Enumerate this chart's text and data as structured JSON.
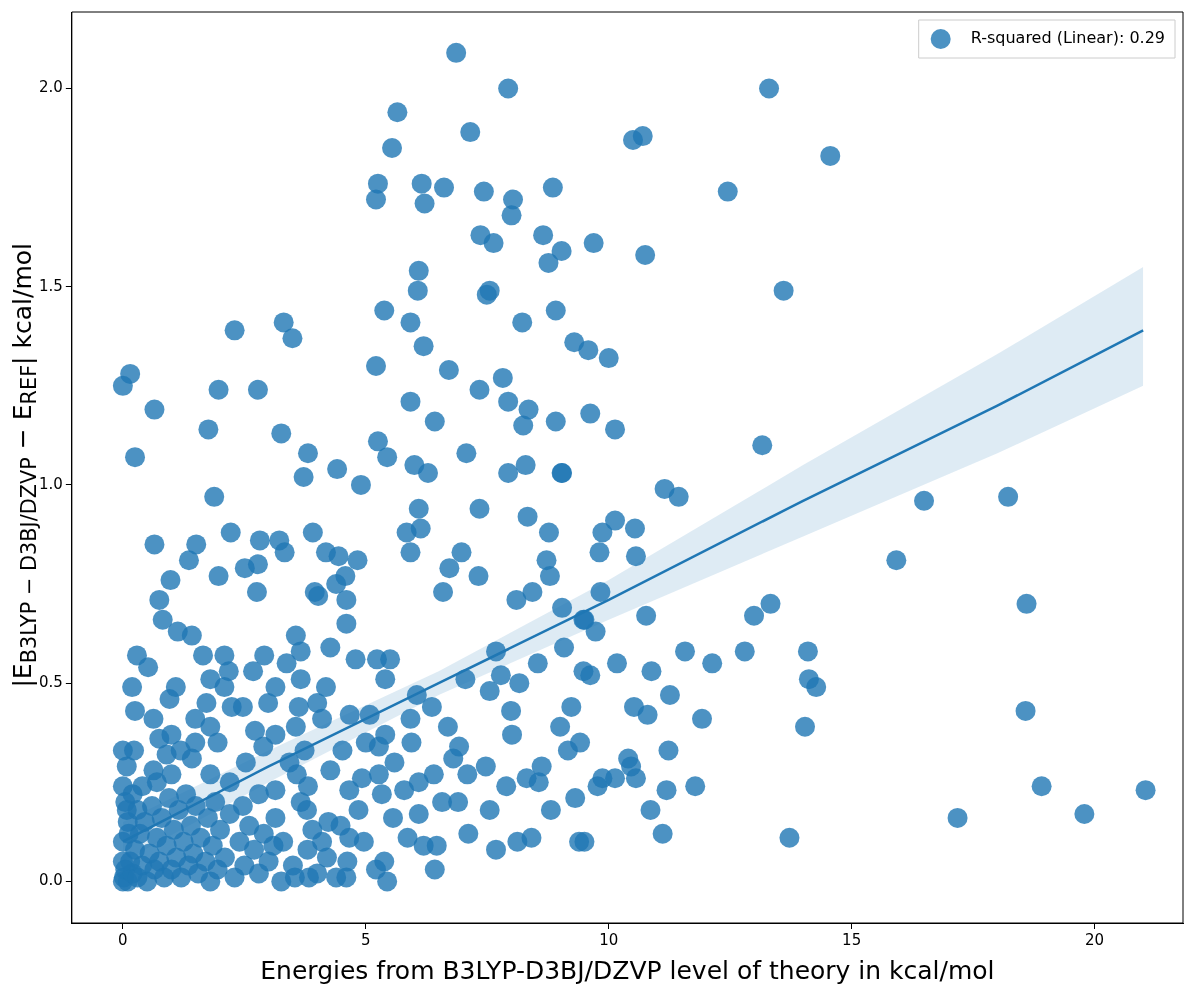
{
  "chart_data": {
    "type": "scatter",
    "xlabel": "Energies from B3LYP-D3BJ/DZVP level of theory in kcal/mol",
    "ylabel": "|E$_{B3LYP − D3BJ/DZVP}$ − E$_{REF}$| kcal/mol",
    "xlim": [
      -1.05,
      21.82
    ],
    "ylim": [
      -0.105,
      2.193
    ],
    "xticks": [
      0,
      5,
      10,
      15,
      20
    ],
    "yticks": [
      {
        "value": 0,
        "label": "0.0"
      },
      {
        "value": 0.5,
        "label": "0.5"
      },
      {
        "value": 1,
        "label": "1.0"
      },
      {
        "value": 1.5,
        "label": "1.5"
      },
      {
        "value": 2,
        "label": "2.0"
      }
    ],
    "legend": "top right",
    "marker": "circle",
    "series": [
      {
        "name": "R-squared (Linear): 0.29",
        "color": "#1f77b4",
        "x": [
          6.86,
          7.93,
          13.3,
          14.56,
          10.7,
          10.5,
          7.15,
          5.65,
          5.54,
          5.25,
          5.21,
          6.15,
          6.21,
          6.61,
          7.43,
          8.03,
          8.0,
          8.85,
          12.45,
          7.36,
          7.63,
          8.65,
          9.69,
          8.76,
          9.03,
          10.75,
          6.09,
          7.49,
          7.55,
          13.6,
          6.07,
          5.38,
          8.91,
          5.92,
          8.22,
          3.31,
          3.49,
          2.3,
          6.19,
          9.29,
          9.58,
          10.0,
          6.71,
          5.21,
          0.15,
          0.0,
          7.34,
          2.78,
          1.97,
          7.82,
          5.92,
          7.93,
          8.35,
          8.91,
          8.24,
          10.13,
          9.62,
          6.42,
          0.65,
          1.76,
          3.26,
          5.25,
          13.16,
          7.07,
          5.44,
          0.25,
          3.81,
          6.0,
          8.29,
          3.72,
          4.41,
          6.28,
          7.93,
          9.03,
          4.9,
          1.88,
          11.15,
          11.44,
          16.49,
          18.22,
          15.92,
          18.6,
          18.58,
          18.91,
          17.18,
          19.79,
          21.05,
          13.72,
          14.1,
          14.12,
          14.27,
          14.04,
          13.33,
          12.99,
          12.8,
          12.13,
          11.57,
          10.13,
          10.54,
          9.87,
          9.81,
          10.56,
          9.83,
          9.5,
          9.73,
          10.77,
          10.17,
          10.88,
          9.62,
          11.26,
          10.52,
          10.8,
          11.92,
          11.23,
          10.4,
          10.46,
          10.13,
          10.56,
          9.77,
          9.87,
          11.19,
          11.78,
          10.86,
          11.11,
          9.5,
          0.65,
          1.51,
          2.22,
          1.36,
          2.82,
          3.22,
          3.33,
          3.91,
          2.51,
          2.78,
          1.97,
          0.98,
          2.76,
          4.18,
          4.44,
          4.83,
          4.58,
          4.39,
          4.6,
          4.02,
          5.92,
          5.84,
          6.09,
          6.13,
          6.97,
          7.34,
          6.72,
          7.32,
          6.59,
          8.33,
          8.77,
          8.72,
          8.79,
          8.1,
          8.43,
          9.04,
          9.04,
          9.48,
          9.08,
          8.54,
          7.78,
          7.55,
          7.99,
          8.01,
          8.16,
          7.05,
          7.68,
          9.48,
          9.23,
          9.0,
          9.16,
          9.41,
          8.62,
          8.31,
          8.56,
          8.81,
          9.31,
          9.39,
          8.41,
          8.12,
          7.68,
          7.11,
          7.89,
          7.47,
          7.09,
          6.8,
          6.92,
          7.55,
          6.9,
          6.57,
          6.42,
          6.46,
          6.19,
          6.09,
          5.86,
          5.79,
          6.09,
          6.4,
          5.94,
          6.69,
          5.92,
          6.36,
          6.05,
          5.08,
          5.4,
          5.59,
          5.27,
          5.0,
          5.33,
          5.56,
          5.38,
          5.21,
          5.44,
          4.85,
          4.23,
          4.48,
          4.66,
          4.96,
          4.39,
          4.6,
          4.62,
          4.66,
          4.27,
          4.52,
          4.92,
          5.27,
          5.4,
          5.5,
          5.23,
          4.67,
          4.79,
          4.27,
          3.95,
          4.6,
          4.0,
          4.18,
          4.1,
          3.79,
          3.66,
          3.83,
          3.54,
          3.26,
          3.81,
          3.58,
          3.43,
          3.74,
          3.56,
          3.62,
          3.66,
          3.66,
          3.56,
          3.37,
          3.14,
          2.99,
          2.91,
          2.68,
          2.47,
          2.72,
          2.53,
          2.89,
          3.14,
          3.14,
          2.8,
          2.47,
          3.14,
          2.24,
          2.09,
          2.18,
          1.8,
          1.65,
          2.09,
          1.72,
          1.49,
          1.8,
          1.95,
          1.49,
          1.42,
          1.8,
          2.2,
          1.13,
          1.42,
          0.82,
          0.75,
          0.29,
          0.52,
          0.19,
          0.25,
          0.96,
          1.09,
          0.63,
          1.0,
          0.75,
          0.0,
          0.23,
          1.19,
          0.9,
          0.63,
          0.08,
          0.0,
          0.0,
          0.02,
          0.05,
          0.1,
          0.15,
          0.2,
          0.25,
          0.3,
          0.35,
          0.4,
          0.45,
          0.5,
          0.55,
          0.6,
          0.65,
          0.7,
          0.75,
          0.8,
          0.85,
          0.9,
          0.95,
          1.0,
          1.05,
          1.1,
          1.15,
          1.2,
          1.25,
          1.3,
          1.35,
          1.4,
          1.45,
          1.5,
          1.55,
          1.6,
          1.7,
          1.75,
          1.8,
          1.85,
          1.9,
          1.95,
          2.0,
          2.1,
          2.2,
          2.3,
          2.4,
          2.5,
          2.6,
          2.7,
          2.8,
          2.9,
          3.0,
          3.1,
          0.05,
          0.1,
          0.0,
          0.2,
          0.3,
          0.0,
          0.12,
          0.4,
          0.7,
          1.0,
          0.08,
          3.3,
          3.5,
          3.8,
          4.0,
          4.2,
          3.9,
          4.1
        ],
        "values": [
          2.09,
          2.0,
          2.0,
          1.83,
          1.88,
          1.87,
          1.89,
          1.94,
          1.85,
          1.76,
          1.72,
          1.76,
          1.71,
          1.75,
          1.74,
          1.72,
          1.68,
          1.75,
          1.74,
          1.63,
          1.61,
          1.63,
          1.61,
          1.56,
          1.59,
          1.58,
          1.54,
          1.48,
          1.49,
          1.49,
          1.49,
          1.44,
          1.44,
          1.41,
          1.41,
          1.41,
          1.37,
          1.39,
          1.35,
          1.36,
          1.34,
          1.32,
          1.29,
          1.3,
          1.28,
          1.25,
          1.24,
          1.24,
          1.24,
          1.27,
          1.21,
          1.21,
          1.19,
          1.16,
          1.15,
          1.14,
          1.18,
          1.16,
          1.19,
          1.14,
          1.13,
          1.11,
          1.1,
          1.08,
          1.07,
          1.07,
          1.08,
          1.05,
          1.05,
          1.02,
          1.04,
          1.03,
          1.03,
          1.03,
          1.0,
          0.97,
          0.99,
          0.97,
          0.96,
          0.97,
          0.81,
          0.7,
          0.43,
          0.24,
          0.16,
          0.17,
          0.23,
          0.11,
          0.58,
          0.51,
          0.49,
          0.39,
          0.7,
          0.67,
          0.58,
          0.55,
          0.58,
          0.91,
          0.89,
          0.88,
          0.83,
          0.82,
          0.73,
          0.66,
          0.63,
          0.67,
          0.55,
          0.53,
          0.52,
          0.47,
          0.44,
          0.42,
          0.41,
          0.33,
          0.31,
          0.29,
          0.26,
          0.26,
          0.24,
          0.26,
          0.23,
          0.24,
          0.18,
          0.12,
          0.1,
          0.85,
          0.85,
          0.88,
          0.81,
          0.86,
          0.86,
          0.83,
          0.88,
          0.79,
          0.8,
          0.77,
          0.76,
          0.73,
          0.83,
          0.82,
          0.81,
          0.77,
          0.75,
          0.71,
          0.72,
          0.83,
          0.88,
          0.94,
          0.89,
          0.83,
          0.94,
          0.79,
          0.77,
          0.73,
          0.92,
          0.88,
          0.81,
          0.77,
          0.71,
          0.73,
          1.03,
          0.69,
          0.66,
          0.59,
          0.55,
          0.52,
          0.48,
          0.43,
          0.37,
          0.5,
          0.51,
          0.58,
          0.53,
          0.44,
          0.39,
          0.33,
          0.35,
          0.29,
          0.26,
          0.25,
          0.18,
          0.21,
          0.1,
          0.11,
          0.1,
          0.08,
          0.12,
          0.24,
          0.29,
          0.27,
          0.31,
          0.34,
          0.18,
          0.2,
          0.2,
          0.03,
          0.09,
          0.09,
          0.17,
          0.11,
          0.23,
          0.25,
          0.27,
          0.35,
          0.39,
          0.41,
          0.44,
          0.47,
          0.42,
          0.37,
          0.3,
          0.27,
          0.35,
          0.22,
          0.16,
          0.05,
          0.03,
          0.0,
          0.18,
          0.15,
          0.14,
          0.11,
          0.1,
          0.01,
          0.01,
          0.05,
          0.23,
          0.28,
          0.33,
          0.26,
          0.34,
          0.51,
          0.56,
          0.56,
          0.42,
          0.56,
          0.59,
          0.73,
          0.65,
          0.45,
          0.49,
          0.41,
          0.18,
          0.2,
          0.01,
          0.01,
          0.0,
          0.24,
          0.27,
          0.3,
          0.33,
          0.39,
          0.44,
          0.51,
          0.58,
          0.62,
          0.55,
          0.49,
          0.45,
          0.57,
          0.53,
          0.44,
          0.38,
          0.3,
          0.34,
          0.37,
          0.23,
          0.22,
          0.19,
          0.16,
          0.44,
          0.49,
          0.53,
          0.51,
          0.57,
          0.57,
          0.45,
          0.41,
          0.39,
          0.35,
          0.35,
          0.31,
          0.27,
          0.25,
          0.63,
          0.62,
          0.66,
          0.71,
          0.57,
          0.54,
          0.49,
          0.43,
          0.46,
          0.49,
          0.41,
          0.37,
          0.36,
          0.33,
          0.33,
          0.33,
          0.32,
          0.28,
          0.29,
          0.24,
          0.0,
          0.01,
          0.03,
          0.0,
          0.05,
          0.02,
          0.08,
          0.01,
          0.12,
          0.04,
          0.15,
          0.0,
          0.07,
          0.19,
          0.03,
          0.11,
          0.05,
          0.16,
          0.01,
          0.09,
          0.21,
          0.03,
          0.13,
          0.06,
          0.18,
          0.01,
          0.1,
          0.22,
          0.04,
          0.14,
          0.07,
          0.19,
          0.02,
          0.11,
          0.05,
          0.16,
          0.0,
          0.09,
          0.2,
          0.03,
          0.13,
          0.06,
          0.17,
          0.01,
          0.1,
          0.04,
          0.14,
          0.08,
          0.02,
          0.12,
          0.05,
          0.09,
          0.2,
          0.15,
          0.1,
          0.22,
          0.18,
          0.05,
          0.12,
          0.24,
          0.25,
          0.27,
          0.18,
          0.1,
          0.04,
          0.08,
          0.02,
          0.06,
          0.13,
          0.1
        ]
      },
      {
        "type": "line",
        "marker": "none",
        "color": "#1f77b4",
        "x": [
          0,
          3,
          6.5,
          10,
          14,
          18,
          21
        ],
        "values": [
          0.1,
          0.29,
          0.5,
          0.71,
          0.96,
          1.2,
          1.39
        ],
        "lower": [
          0.05,
          0.25,
          0.47,
          0.66,
          0.87,
          1.08,
          1.25
        ],
        "upper": [
          0.15,
          0.33,
          0.53,
          0.76,
          1.05,
          1.33,
          1.55
        ]
      }
    ]
  }
}
